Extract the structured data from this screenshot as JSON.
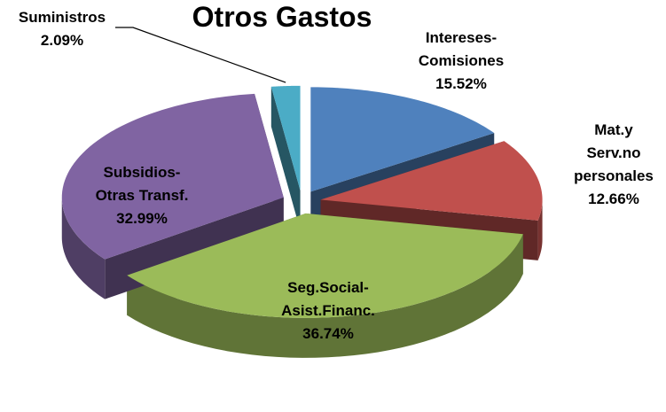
{
  "chart_data": {
    "type": "pie",
    "title": "Otros Gastos",
    "categories": [
      "Intereses-\nComisiones",
      "Mat.y\nServ.no\npersonales",
      "Seg.Social-\nAsist.Financ.",
      "Subsidios-\nOtras Transf.",
      "Suministros"
    ],
    "values": [
      15.52,
      12.66,
      36.74,
      32.99,
      2.09
    ],
    "value_labels": [
      "15.52%",
      "12.66%",
      "36.74%",
      "32.99%",
      "2.09%"
    ],
    "colors": [
      "#4f81bd",
      "#c0504d",
      "#9bbb59",
      "#8064a2",
      "#4bacc6"
    ],
    "exploded": true,
    "three_d": true
  }
}
